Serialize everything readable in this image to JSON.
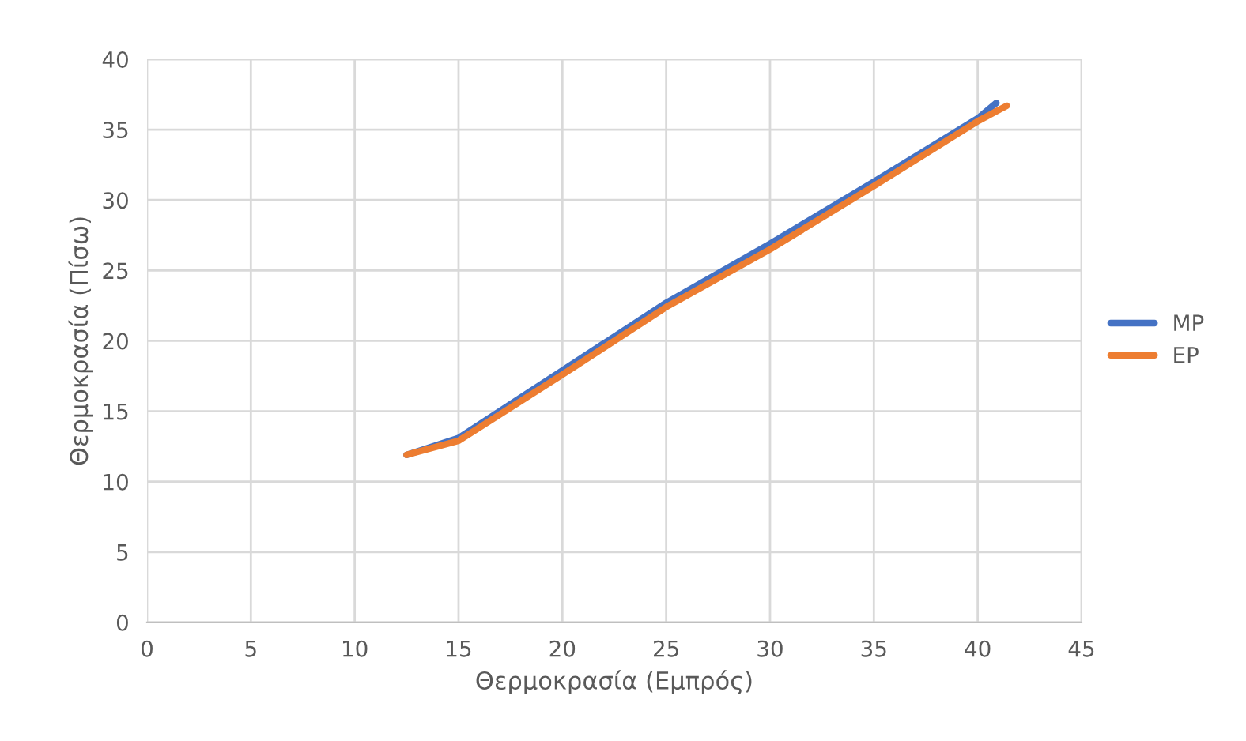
{
  "chart_data": {
    "type": "line",
    "xlabel": "Θερμοκρασία (Εμπρός)",
    "ylabel": "Θερμοκρασία (Πίσω)",
    "xlim": [
      0,
      45
    ],
    "ylim": [
      0,
      40
    ],
    "xticks": [
      0,
      5,
      10,
      15,
      20,
      25,
      30,
      35,
      40,
      45
    ],
    "yticks": [
      0,
      5,
      10,
      15,
      20,
      25,
      30,
      35,
      40
    ],
    "grid": true,
    "legend": "right",
    "marker": "none",
    "line_style": "solid",
    "series": [
      {
        "name": "MP",
        "color": "#4472c4",
        "x": [
          12.5,
          15,
          20,
          25,
          30,
          35,
          40,
          40.9
        ],
        "values": [
          11.9,
          13.1,
          17.9,
          22.7,
          26.9,
          31.3,
          35.8,
          36.9
        ]
      },
      {
        "name": "EP",
        "color": "#ed7d31",
        "x": [
          12.5,
          15,
          20,
          25,
          30,
          35,
          40,
          41.4
        ],
        "values": [
          11.9,
          12.9,
          17.6,
          22.4,
          26.5,
          31.0,
          35.6,
          36.7
        ]
      }
    ]
  }
}
